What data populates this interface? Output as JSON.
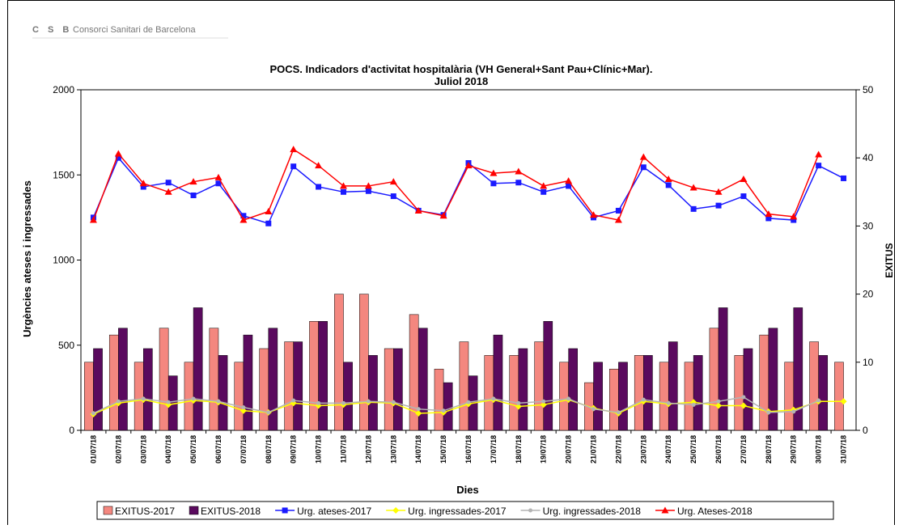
{
  "header": {
    "logo": "C S B",
    "organization": "Consorci Sanitari de Barcelona"
  },
  "chart_data": {
    "type": "combo",
    "title": "POCS.  Indicadors d'activitat hospitalària (VH General+Sant Pau+Clínic+Mar).",
    "subtitle": "Juliol 2018",
    "y_label": "Urgències ateses i ingressades",
    "y2_label": "EXITUS",
    "x_label": "Dies",
    "categories": [
      "01/07/18",
      "02/07/18",
      "03/07/18",
      "04/07/18",
      "05/07/18",
      "06/07/18",
      "07/07/18",
      "08/07/18",
      "09/07/18",
      "10/07/18",
      "11/07/18",
      "12/07/18",
      "13/07/18",
      "14/07/18",
      "15/07/18",
      "16/07/18",
      "17/07/18",
      "18/07/18",
      "19/07/18",
      "20/07/18",
      "21/07/18",
      "22/07/18",
      "23/07/18",
      "24/07/18",
      "25/07/18",
      "26/07/18",
      "27/07/18",
      "28/07/18",
      "29/07/18",
      "30/07/18",
      "31/07/18"
    ],
    "ylim": [
      0,
      2000
    ],
    "yticks": [
      0,
      500,
      1000,
      1500,
      2000
    ],
    "y2lim": [
      0,
      50
    ],
    "y2ticks": [
      0,
      10,
      20,
      30,
      40,
      50
    ],
    "series": [
      {
        "name": "EXITUS-2017",
        "kind": "bar",
        "axis": "y2",
        "color": "#f4877f",
        "values": [
          10,
          14,
          10,
          15,
          10,
          15,
          10,
          12,
          13,
          16,
          20,
          20,
          12,
          17,
          9,
          13,
          11,
          11,
          13,
          10,
          7,
          9,
          11,
          10,
          10,
          15,
          11,
          14,
          10,
          13,
          10
        ]
      },
      {
        "name": "EXITUS-2018",
        "kind": "bar",
        "axis": "y2",
        "color": "#5a0a5e",
        "values": [
          12,
          15,
          12,
          8,
          18,
          11,
          14,
          15,
          13,
          16,
          10,
          11,
          12,
          15,
          7,
          8,
          14,
          12,
          16,
          12,
          10,
          10,
          11,
          13,
          11,
          18,
          12,
          15,
          18,
          11,
          null
        ]
      },
      {
        "name": "Urg. ateses-2017",
        "kind": "line",
        "marker": "square",
        "color": "#1a1aff",
        "values": [
          1250,
          1600,
          1430,
          1455,
          1380,
          1450,
          1260,
          1215,
          1550,
          1430,
          1400,
          1405,
          1375,
          1290,
          1265,
          1570,
          1450,
          1455,
          1400,
          1435,
          1250,
          1290,
          1545,
          1440,
          1300,
          1320,
          1375,
          1245,
          1235,
          1555,
          1480
        ]
      },
      {
        "name": "Urg. ingressades-2017",
        "kind": "line",
        "marker": "diamond",
        "color": "#ffff00",
        "values": [
          95,
          160,
          180,
          150,
          175,
          165,
          115,
          105,
          160,
          145,
          150,
          165,
          160,
          100,
          105,
          155,
          180,
          140,
          150,
          180,
          130,
          100,
          170,
          155,
          165,
          145,
          145,
          110,
          120,
          170,
          170
        ]
      },
      {
        "name": "Urg. ingressades-2018",
        "kind": "line",
        "marker": "circle",
        "color": "#b4b4b4",
        "values": [
          100,
          170,
          185,
          165,
          185,
          170,
          135,
          105,
          175,
          160,
          160,
          170,
          165,
          125,
          115,
          165,
          185,
          160,
          170,
          185,
          125,
          105,
          180,
          160,
          150,
          170,
          195,
          105,
          110,
          175,
          null
        ]
      },
      {
        "name": "Urg. Ateses-2018",
        "kind": "line",
        "marker": "triangle",
        "color": "#ff0000",
        "values": [
          1235,
          1625,
          1450,
          1400,
          1460,
          1485,
          1235,
          1285,
          1650,
          1555,
          1435,
          1435,
          1460,
          1290,
          1260,
          1555,
          1510,
          1520,
          1435,
          1465,
          1265,
          1235,
          1605,
          1475,
          1425,
          1400,
          1475,
          1270,
          1255,
          1620,
          null
        ]
      }
    ]
  }
}
